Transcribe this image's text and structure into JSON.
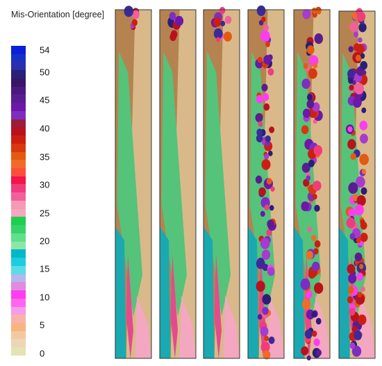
{
  "legend": {
    "title": "Mis-Orientation [degree]",
    "ticks": [
      "54",
      "50",
      "45",
      "40",
      "35",
      "30",
      "25",
      "20",
      "15",
      "10",
      "5",
      "0"
    ],
    "colors": [
      "#0a1fd6",
      "#1930c8",
      "#2a2fae",
      "#2a1f77",
      "#3a1466",
      "#4b1a80",
      "#5a1d90",
      "#6c18a8",
      "#7d2ec0",
      "#9a1e3a",
      "#b8121f",
      "#cc1f12",
      "#d8380f",
      "#e45a11",
      "#f06a2a",
      "#ff4d3c",
      "#f2154a",
      "#f03c7c",
      "#f2609b",
      "#f39ab7",
      "#f7a6c0",
      "#1dcf4e",
      "#36d36a",
      "#5fe08a",
      "#8ee6a6",
      "#00b8c8",
      "#1ccce0",
      "#5cdbe8",
      "#b2b7ee",
      "#e08ae0",
      "#ff3df0",
      "#ff66ee",
      "#f59be9",
      "#f8b3a8",
      "#f7b67f",
      "#f4c8a0",
      "#ecd6b3",
      "#e3e3b4"
    ]
  },
  "panels": [
    {
      "id": "panel-1"
    },
    {
      "id": "panel-2"
    },
    {
      "id": "panel-3"
    },
    {
      "id": "panel-4"
    },
    {
      "id": "panel-5"
    },
    {
      "id": "panel-6"
    }
  ]
}
